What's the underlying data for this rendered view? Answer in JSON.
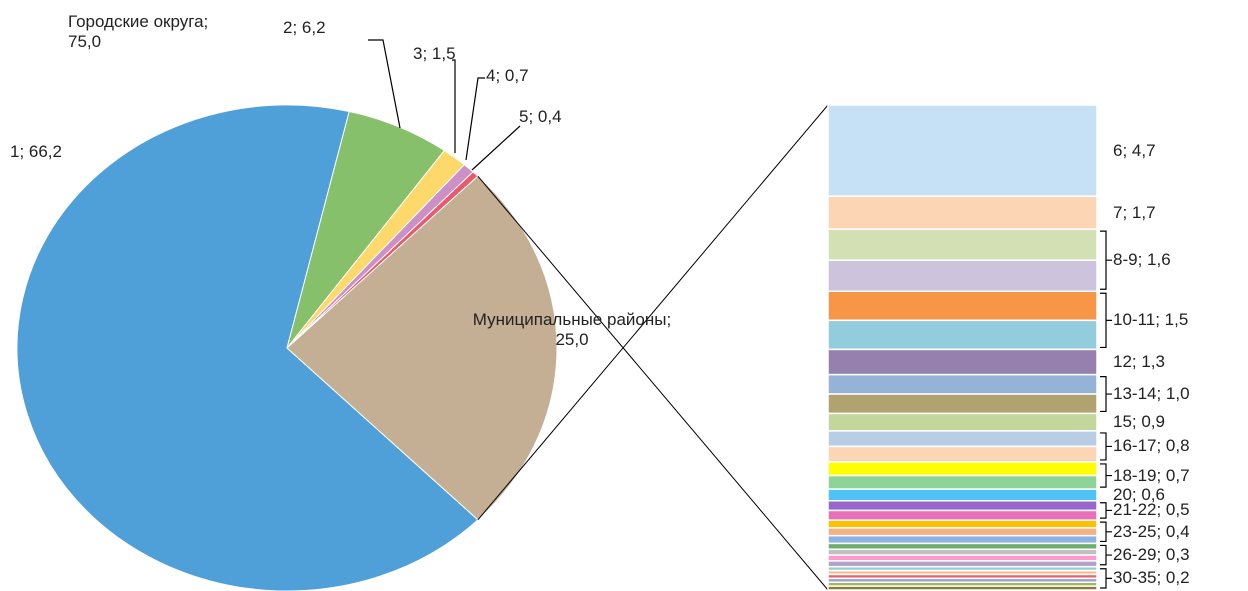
{
  "chart_data": {
    "type": "pie-of-bar",
    "annotation": "Городские округа; 75,0",
    "slices": [
      {
        "label": "1; 66,2",
        "value": 66.2,
        "color": "#4f9fd8"
      },
      {
        "label": "2; 6,2",
        "value": 6.2,
        "color": "#86c06a"
      },
      {
        "label": "3; 1,5",
        "value": 1.5,
        "color": "#fcd96a"
      },
      {
        "label": "4; 0,7",
        "value": 0.7,
        "color": "#cc8fc6"
      },
      {
        "label": "5; 0,4",
        "value": 0.4,
        "color": "#ea5a6a"
      },
      {
        "label": "Муниципальные районы; 25,0",
        "value": 25.0,
        "color": "#c4af95"
      }
    ],
    "bar_groups": [
      {
        "label": "6; 4,7",
        "values": [
          4.7
        ],
        "colors": [
          "#c6e0f5"
        ]
      },
      {
        "label": "7; 1,7",
        "values": [
          1.7
        ],
        "colors": [
          "#fcd5b4"
        ]
      },
      {
        "label": "8-9; 1,6",
        "values": [
          1.6,
          1.6
        ],
        "colors": [
          "#d2e0b4",
          "#cdc3dc"
        ]
      },
      {
        "label": "10-11; 1,5",
        "values": [
          1.5,
          1.5
        ],
        "colors": [
          "#f79646",
          "#93cddd"
        ]
      },
      {
        "label": "12; 1,3",
        "values": [
          1.3
        ],
        "colors": [
          "#9580ae"
        ]
      },
      {
        "label": "13-14; 1,0",
        "values": [
          1.0,
          1.0
        ],
        "colors": [
          "#95b3d7",
          "#b0a370"
        ]
      },
      {
        "label": "15; 0,9",
        "values": [
          0.9
        ],
        "colors": [
          "#c3d69b"
        ]
      },
      {
        "label": "16-17; 0,8",
        "values": [
          0.8,
          0.8
        ],
        "colors": [
          "#b9cde5",
          "#fcd5b4"
        ]
      },
      {
        "label": "18-19; 0,7",
        "values": [
          0.7,
          0.7
        ],
        "colors": [
          "#ffff00",
          "#8fd39b"
        ]
      },
      {
        "label": "20; 0,6",
        "values": [
          0.6
        ],
        "colors": [
          "#4fc3f7"
        ]
      },
      {
        "label": "21-22; 0,5",
        "values": [
          0.5,
          0.5
        ],
        "colors": [
          "#9966cc",
          "#e86fb8"
        ]
      },
      {
        "label": "23-25; 0,4",
        "values": [
          0.4,
          0.4,
          0.4
        ],
        "colors": [
          "#ffc000",
          "#f4b183",
          "#8db3e2"
        ]
      },
      {
        "label": "26-29; 0,3",
        "values": [
          0.3,
          0.3,
          0.3,
          0.3
        ],
        "colors": [
          "#6cae6c",
          "#c0c0c0",
          "#ff99cc",
          "#b3a2c7"
        ]
      },
      {
        "label": "30-35; 0,2",
        "values": [
          0.2,
          0.2,
          0.2,
          0.2,
          0.2,
          0.2
        ],
        "colors": [
          "#93cddd",
          "#fac090",
          "#e06666",
          "#a0a0d0",
          "#9bbb59",
          "#8b7d3a"
        ]
      }
    ]
  }
}
